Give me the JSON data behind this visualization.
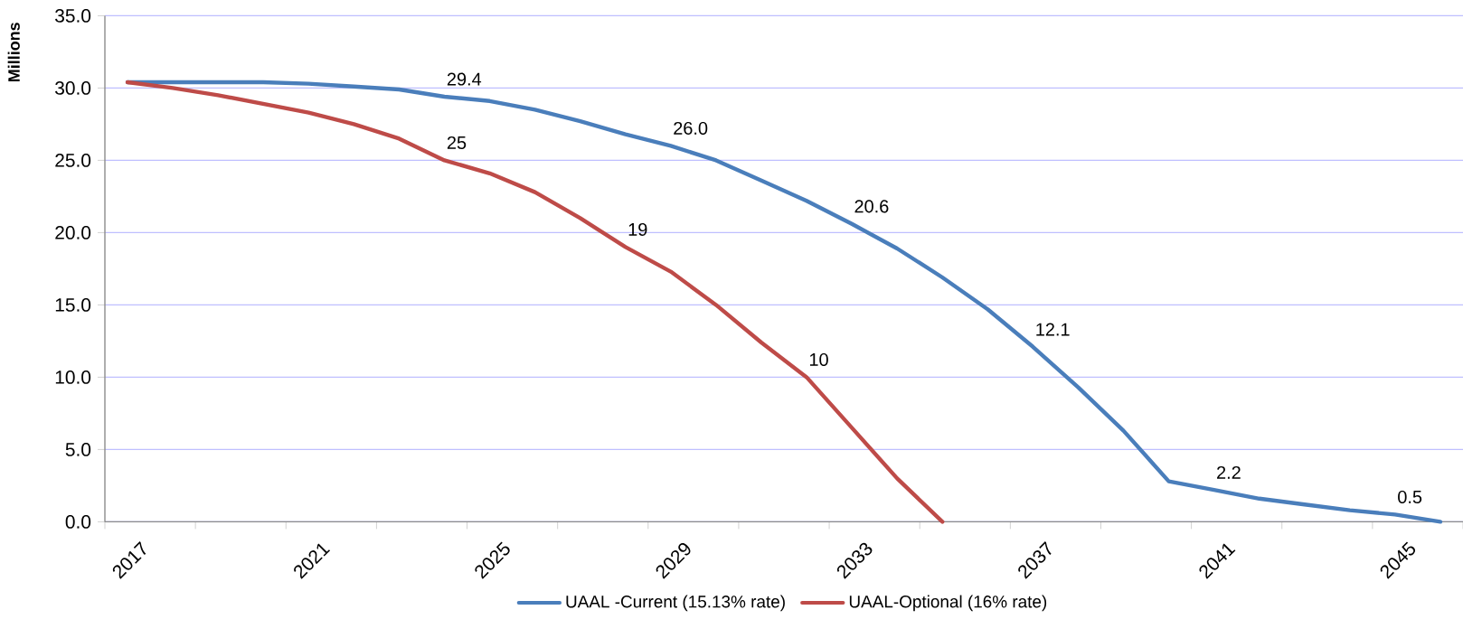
{
  "chart_data": {
    "type": "line",
    "ylabel": "Millions",
    "categories": [
      "2017",
      null,
      null,
      null,
      "2021",
      null,
      null,
      null,
      "2025",
      null,
      null,
      null,
      "2029",
      null,
      null,
      null,
      "2033",
      null,
      null,
      null,
      "2037",
      null,
      null,
      null,
      "2041",
      null,
      null,
      null,
      "2045",
      null
    ],
    "series": [
      {
        "name": "UAAL -Current (15.13% rate)",
        "color": "#4a7ebb",
        "values": [
          30.4,
          30.4,
          30.4,
          30.4,
          30.3,
          30.1,
          29.9,
          29.4,
          29.1,
          28.5,
          27.7,
          26.8,
          26.0,
          25.0,
          23.6,
          22.2,
          20.6,
          18.9,
          16.9,
          14.7,
          12.1,
          9.3,
          6.3,
          2.8,
          2.2,
          1.6,
          1.2,
          0.8,
          0.5,
          0.0
        ],
        "value_labels": [
          null,
          null,
          null,
          null,
          null,
          null,
          null,
          "29.4",
          null,
          null,
          null,
          null,
          "26.0",
          null,
          null,
          null,
          "20.6",
          null,
          null,
          null,
          "12.1",
          null,
          null,
          null,
          "2.2",
          null,
          null,
          null,
          "0.5",
          null
        ]
      },
      {
        "name": "UAAL-Optional (16% rate)",
        "color": "#be4b48",
        "values": [
          30.4,
          30.0,
          29.5,
          28.9,
          28.3,
          27.5,
          26.5,
          25,
          24.1,
          22.8,
          21.0,
          19,
          17.3,
          15.0,
          12.4,
          10,
          6.5,
          3.0,
          0.0,
          null,
          null,
          null,
          null,
          null,
          null,
          null,
          null,
          null,
          null,
          null
        ],
        "value_labels": [
          null,
          null,
          null,
          null,
          null,
          null,
          null,
          "25",
          null,
          null,
          null,
          "19",
          null,
          null,
          null,
          "10",
          null,
          null,
          null,
          null,
          null,
          null,
          null,
          null,
          null,
          null,
          null,
          null,
          null,
          null
        ]
      }
    ],
    "ylim": [
      0,
      35
    ],
    "yticks": [
      {
        "value": 0,
        "label": "0.0"
      },
      {
        "value": 5,
        "label": "5.0"
      },
      {
        "value": 10,
        "label": "10.0"
      },
      {
        "value": 15,
        "label": "15.0"
      },
      {
        "value": 20,
        "label": "20.0"
      },
      {
        "value": 25,
        "label": "25.0"
      },
      {
        "value": 30,
        "label": "30.0"
      },
      {
        "value": 35,
        "label": "35.0"
      }
    ],
    "grid": "y",
    "legend": "bottom",
    "marker": "none",
    "line_style": "solid"
  }
}
